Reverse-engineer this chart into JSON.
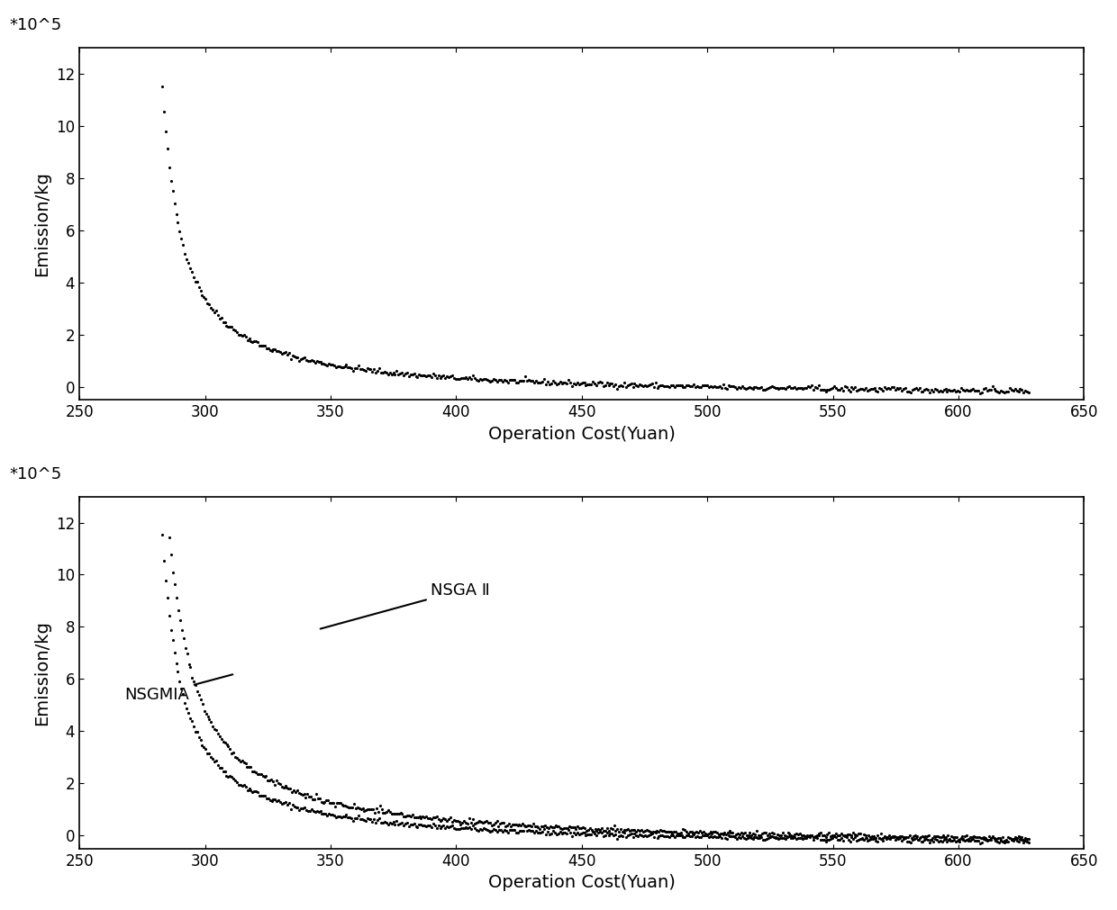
{
  "xlabel": "Operation Cost(Yuan)",
  "ylabel": "Emission/kg",
  "scale_label": "*10^5",
  "xlim": [
    250,
    650
  ],
  "ylim": [
    -0.5,
    13
  ],
  "xticks": [
    250,
    300,
    350,
    400,
    450,
    500,
    550,
    600,
    650
  ],
  "yticks": [
    0,
    2,
    4,
    6,
    8,
    10,
    12
  ],
  "x_start": 283,
  "x_end": 628,
  "curve_color": "#000000",
  "background_color": "#ffffff",
  "label_nsga2": "NSGA Ⅱ",
  "label_nsgmia": "NSGMIA",
  "y_max": 11.5,
  "y_min": -0.15,
  "hyperbola_a": 16.0,
  "hyperbola_b": 0.045,
  "n_points": 500,
  "noise_std": 0.05,
  "markersize": 2.5
}
